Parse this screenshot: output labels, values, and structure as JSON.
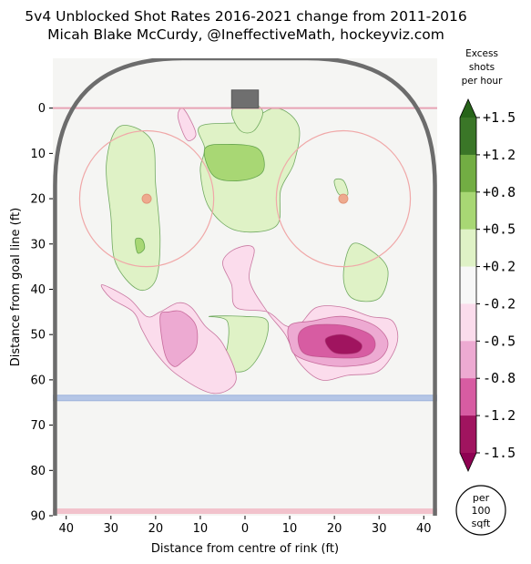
{
  "header": {
    "title": "5v4 Unblocked Shot Rates 2016-2021 change from 2011-2016",
    "subtitle": "Micah Blake McCurdy, @IneffectiveMath, hockeyviz.com"
  },
  "colorbar": {
    "title_lines": [
      "Excess",
      "shots",
      "per hour"
    ],
    "ticks": [
      "+1.5",
      "+1.2",
      "+0.8",
      "+0.5",
      "+0.2",
      "-0.2",
      "-0.5",
      "-0.8",
      "-1.2",
      "-1.5"
    ],
    "bin_colors": [
      "#3a7627",
      "#72ad43",
      "#a8d774",
      "#dff2c6",
      "#f7f7f7",
      "#fbdcec",
      "#edaad2",
      "#d75ca2",
      "#a0145f"
    ],
    "extend_high_color": "#276419",
    "extend_low_color": "#8e0152"
  },
  "unit_badge": {
    "lines": [
      "per",
      "100",
      "sqft"
    ]
  },
  "chart_data": {
    "type": "heatmap",
    "title": "5v4 Unblocked Shot Rates 2016-2021 change from 2011-2016",
    "subtitle": "Micah Blake McCurdy, @IneffectiveMath, hockeyviz.com",
    "xlabel": "Distance from centre of rink (ft)",
    "ylabel": "Distance from goal line (ft)",
    "xlim": [
      43,
      -43
    ],
    "ylim": [
      90,
      -11
    ],
    "xticks": [
      40,
      30,
      20,
      10,
      0,
      10,
      20,
      30,
      40
    ],
    "xtick_values": [
      40,
      30,
      20,
      10,
      0,
      -10,
      -20,
      -30,
      -40
    ],
    "yticks": [
      0,
      10,
      20,
      30,
      40,
      50,
      60,
      70,
      80,
      90
    ],
    "colorbar_label": "Excess shots per hour",
    "colorbar_range": [
      -1.5,
      1.5
    ],
    "colorbar_levels": [
      -1.5,
      -1.2,
      -0.8,
      -0.5,
      -0.2,
      0.2,
      0.5,
      0.8,
      1.2,
      1.5
    ],
    "rink_lines": {
      "goal_line_y": 0,
      "blue_line_y": 64,
      "center_line_y": 89,
      "faceoff_circles": [
        {
          "x": 22,
          "y": 20,
          "r": 15
        },
        {
          "x": -22,
          "y": 20,
          "r": 15
        }
      ]
    },
    "regions": [
      {
        "name": "left-slot-positive",
        "level": 0.35,
        "points": [
          [
            28,
            4
          ],
          [
            21,
            7
          ],
          [
            20,
            17
          ],
          [
            19,
            29
          ],
          [
            20,
            38
          ],
          [
            24,
            40
          ],
          [
            29,
            34
          ],
          [
            30,
            24
          ],
          [
            31,
            12
          ]
        ]
      },
      {
        "name": "left-slot-positive-core",
        "level": 0.65,
        "points": [
          [
            24.5,
            29
          ],
          [
            23,
            29
          ],
          [
            22.5,
            31
          ],
          [
            24,
            32
          ]
        ]
      },
      {
        "name": "crease-positive",
        "level": 0.35,
        "points": [
          [
            10,
            4
          ],
          [
            9,
            9
          ],
          [
            10,
            14
          ],
          [
            8,
            22
          ],
          [
            2,
            27
          ],
          [
            -7,
            26
          ],
          [
            -8,
            18
          ],
          [
            -11,
            12
          ],
          [
            -12,
            4
          ],
          [
            -7,
            0
          ],
          [
            0,
            3
          ]
        ]
      },
      {
        "name": "crease-positive-core",
        "level": 0.65,
        "points": [
          [
            9,
            9
          ],
          [
            4,
            8
          ],
          [
            -3,
            9
          ],
          [
            -4,
            14
          ],
          [
            1,
            16
          ],
          [
            7,
            15
          ]
        ]
      },
      {
        "name": "crease-light",
        "level": 0.25,
        "points": [
          [
            3,
            1
          ],
          [
            1,
            5
          ],
          [
            -2,
            5
          ],
          [
            -4,
            1
          ],
          [
            -2,
            -1
          ],
          [
            1,
            -1
          ]
        ]
      },
      {
        "name": "right-dot-positive",
        "level": 0.35,
        "points": [
          [
            -20,
            16
          ],
          [
            -22,
            16
          ],
          [
            -23,
            19
          ],
          [
            -21,
            19
          ]
        ]
      },
      {
        "name": "right-point-positive",
        "level": 0.35,
        "points": [
          [
            -24,
            30
          ],
          [
            -22,
            37
          ],
          [
            -24,
            42
          ],
          [
            -30,
            42
          ],
          [
            -32,
            36
          ],
          [
            -29,
            32
          ]
        ]
      },
      {
        "name": "high-slot-positive",
        "level": 0.35,
        "points": [
          [
            8,
            46
          ],
          [
            4,
            47
          ],
          [
            4,
            53
          ],
          [
            6,
            57
          ],
          [
            0,
            58
          ],
          [
            -4,
            53
          ],
          [
            -5,
            47
          ],
          [
            0,
            46
          ]
        ]
      },
      {
        "name": "left-crease-negative",
        "level": -0.3,
        "points": [
          [
            14,
            0
          ],
          [
            12,
            3
          ],
          [
            11,
            6
          ],
          [
            13,
            7
          ],
          [
            15,
            2
          ]
        ]
      },
      {
        "name": "left-point-negative",
        "level": -0.3,
        "points": [
          [
            32,
            39
          ],
          [
            30,
            42
          ],
          [
            25,
            45
          ],
          [
            23,
            49
          ],
          [
            20,
            54
          ],
          [
            15,
            59
          ],
          [
            7,
            63
          ],
          [
            2,
            60
          ],
          [
            5,
            52
          ],
          [
            9,
            48
          ],
          [
            12,
            44
          ],
          [
            15,
            43
          ],
          [
            19,
            45
          ],
          [
            22,
            46
          ],
          [
            26,
            42
          ]
        ]
      },
      {
        "name": "left-point-core",
        "level": -0.65,
        "points": [
          [
            17,
            45
          ],
          [
            19,
            46
          ],
          [
            18,
            54
          ],
          [
            16,
            57
          ],
          [
            14,
            56
          ],
          [
            11,
            53
          ],
          [
            11,
            48
          ],
          [
            14,
            45
          ]
        ]
      },
      {
        "name": "right-slot-negative",
        "level": -0.3,
        "points": [
          [
            -2,
            31
          ],
          [
            2,
            31
          ],
          [
            5,
            34
          ],
          [
            3,
            39
          ],
          [
            2,
            44
          ],
          [
            -5,
            45
          ],
          [
            -9,
            48
          ],
          [
            -12,
            48
          ],
          [
            -16,
            44
          ],
          [
            -22,
            44
          ],
          [
            -28,
            46
          ],
          [
            -33,
            47
          ],
          [
            -34,
            52
          ],
          [
            -30,
            58
          ],
          [
            -23,
            59
          ],
          [
            -17,
            60
          ],
          [
            -12,
            56
          ],
          [
            -9,
            50
          ],
          [
            -5,
            45
          ],
          [
            -1,
            38
          ]
        ]
      },
      {
        "name": "right-slot-mid",
        "level": -0.65,
        "points": [
          [
            -10,
            48
          ],
          [
            -15,
            47
          ],
          [
            -22,
            46
          ],
          [
            -29,
            48
          ],
          [
            -32,
            52
          ],
          [
            -29,
            56
          ],
          [
            -20,
            57
          ],
          [
            -12,
            55
          ],
          [
            -10,
            52
          ]
        ]
      },
      {
        "name": "right-slot-dark",
        "level": -1.0,
        "points": [
          [
            -12,
            50
          ],
          [
            -15,
            48
          ],
          [
            -22,
            48
          ],
          [
            -28,
            50
          ],
          [
            -29,
            53
          ],
          [
            -26,
            55
          ],
          [
            -18,
            55
          ],
          [
            -13,
            54
          ]
        ]
      },
      {
        "name": "right-slot-core",
        "level": -1.35,
        "points": [
          [
            -18,
            51
          ],
          [
            -22,
            50
          ],
          [
            -26,
            52
          ],
          [
            -25,
            54
          ],
          [
            -20,
            54
          ]
        ]
      }
    ]
  }
}
